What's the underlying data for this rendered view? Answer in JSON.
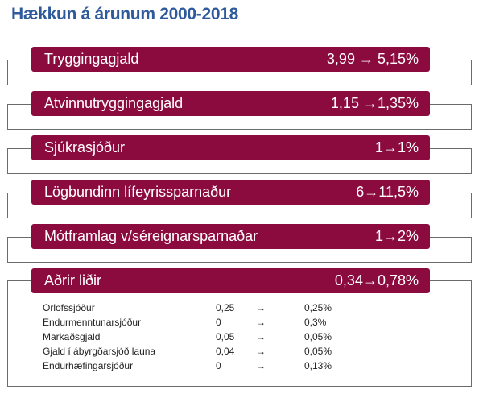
{
  "title": "Hækkun á árunum 2000-2018",
  "items": [
    {
      "label": "Tryggingagjald",
      "value": "3,99 → 5,15%"
    },
    {
      "label": "Atvinnutryggingagjald",
      "value": "1,15 →1,35%"
    },
    {
      "label": "Sjúkrasjóður",
      "value": "1→1%"
    },
    {
      "label": "Lögbundinn lífeyrissparnaður",
      "value": "6→11,5%"
    },
    {
      "label": "Mótframlag v/séreignarsparnaðar",
      "value": "1→2%"
    },
    {
      "label": "Aðrir liðir",
      "value": "0,34→0,78%"
    }
  ],
  "subitems": [
    {
      "name": "Orlofssjóður",
      "from": "0,25",
      "arrow": "→",
      "to": "0,25%"
    },
    {
      "name": "Endurmenntunarsjóður",
      "from": "0",
      "arrow": "→",
      "to": "0,3%"
    },
    {
      "name": "Markaðsgjald",
      "from": "0,05",
      "arrow": "→",
      "to": "0,05%"
    },
    {
      "name": "Gjald í ábyrgðarsjóð launa",
      "from": "0,04",
      "arrow": "→",
      "to": "0,05%"
    },
    {
      "name": "Endurhæfingarsjóður",
      "from": "0",
      "arrow": "→",
      "to": "0,13%"
    }
  ],
  "colors": {
    "bar": "#8c0b3f",
    "title": "#2e5a9c",
    "frame": "#6b6b6b"
  }
}
